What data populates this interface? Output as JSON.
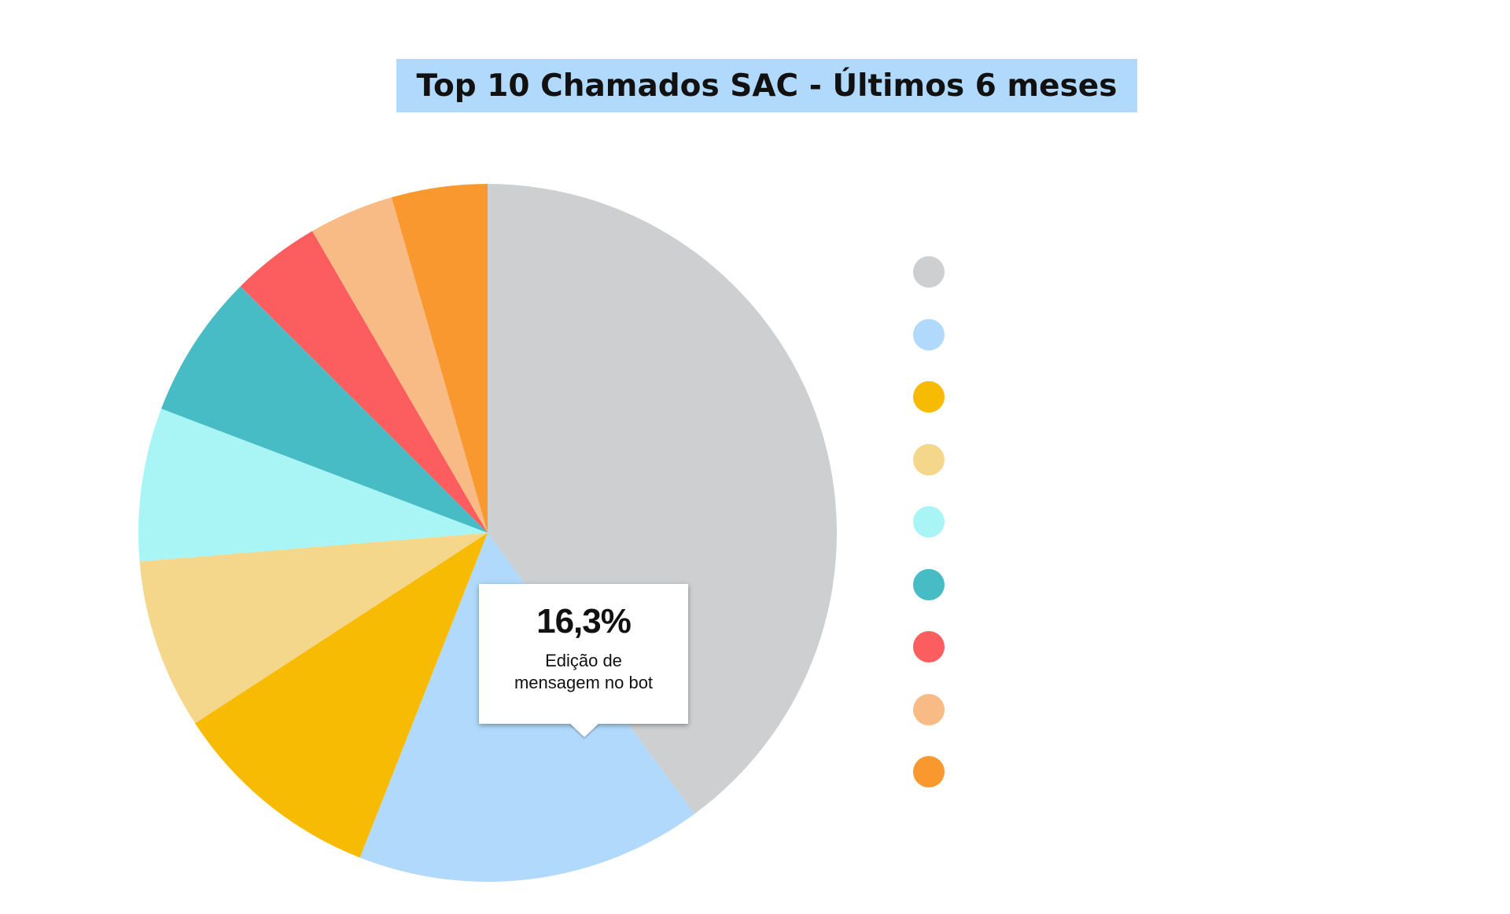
{
  "title": "Top 10 Chamados SAC - Últimos 6 meses",
  "chart_data": {
    "type": "pie",
    "title": "Top 10 Chamados SAC - Últimos 6 meses",
    "slices": [
      {
        "value": 40.5,
        "color": "#cdcfd1"
      },
      {
        "value": 16.3,
        "color": "#b0d9fb",
        "label": "Edição de mensagem no bot"
      },
      {
        "value": 10.0,
        "color": "#f8bb04"
      },
      {
        "value": 8.0,
        "color": "#f5d78b"
      },
      {
        "value": 7.2,
        "color": "#a9f5f6"
      },
      {
        "value": 6.8,
        "color": "#47bcc5"
      },
      {
        "value": 4.2,
        "color": "#fc5e5f"
      },
      {
        "value": 4.0,
        "color": "#f8bb86"
      },
      {
        "value": 4.5,
        "color": "#f8982e"
      }
    ],
    "legend_position": "right"
  },
  "tooltip": {
    "value": "16,3%",
    "label": "Edição de mensagem no bot"
  },
  "legend": {
    "colors": [
      "#cdcfd1",
      "#b0d9fb",
      "#f8bb04",
      "#f5d78b",
      "#a9f5f6",
      "#47bcc5",
      "#fc5e5f",
      "#f8bb86",
      "#f8982e"
    ]
  }
}
